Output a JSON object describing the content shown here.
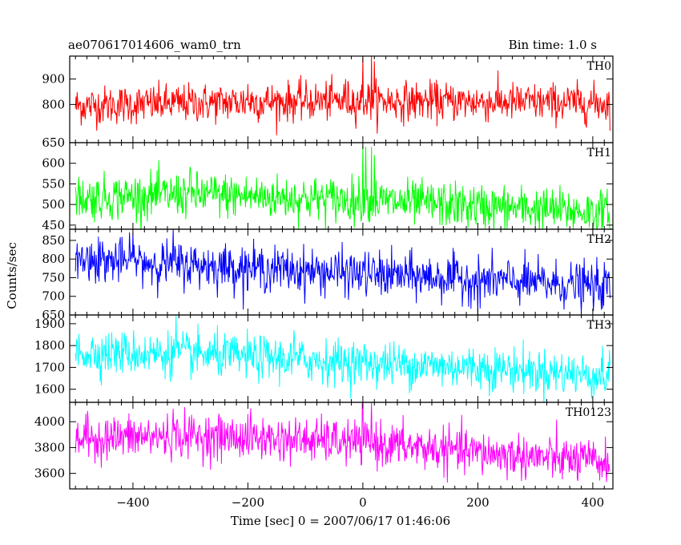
{
  "chart_data": {
    "type": "line",
    "title": "ae070617014606_wam0_trn",
    "bin_time_label": "Bin time: 1.0 s",
    "xlabel": "Time [sec] 0 = 2007/06/17 01:46:06",
    "ylabel": "Counts/sec",
    "x_range": [
      -510,
      435
    ],
    "data_x_range": [
      -500,
      430
    ],
    "x_ticks": [
      -400,
      -200,
      0,
      200,
      400
    ],
    "x_tick_labels": [
      "−400",
      "−200",
      "0",
      "200",
      "400"
    ],
    "grid": false,
    "panels": [
      {
        "name": "TH0",
        "color": "#ff0000",
        "ylim": [
          650,
          990
        ],
        "y_ticks": [
          900,
          800,
          650
        ],
        "y_tick_labels": [
          "900",
          "800",
          "650"
        ],
        "trend": [
          [
            -500,
            795
          ],
          [
            -200,
            810
          ],
          [
            0,
            815
          ],
          [
            200,
            810
          ],
          [
            430,
            805
          ]
        ],
        "noise_sd": 38,
        "spikes": [
          [
            -30,
            900
          ],
          [
            0,
            990
          ],
          [
            15,
            990
          ],
          [
            20,
            970
          ],
          [
            -200,
            880
          ]
        ]
      },
      {
        "name": "TH1",
        "color": "#00ff00",
        "ylim": [
          440,
          650
        ],
        "y_ticks": [
          600,
          550,
          500,
          450
        ],
        "y_tick_labels": [
          "600",
          "550",
          "500",
          "450"
        ],
        "trend": [
          [
            -500,
            515
          ],
          [
            -300,
            525
          ],
          [
            0,
            510
          ],
          [
            200,
            495
          ],
          [
            430,
            480
          ]
        ],
        "noise_sd": 27,
        "spikes": [
          [
            0,
            650
          ],
          [
            5,
            640
          ],
          [
            15,
            640
          ],
          [
            20,
            620
          ],
          [
            -300,
            590
          ]
        ]
      },
      {
        "name": "TH2",
        "color": "#0000ff",
        "ylim": [
          650,
          880
        ],
        "y_ticks": [
          850,
          800,
          750,
          700,
          650
        ],
        "y_tick_labels": [
          "850",
          "800",
          "750",
          "700",
          "650"
        ],
        "trend": [
          [
            -500,
            800
          ],
          [
            -300,
            785
          ],
          [
            0,
            760
          ],
          [
            200,
            745
          ],
          [
            430,
            725
          ]
        ],
        "noise_sd": 30,
        "spikes": [
          [
            -400,
            870
          ],
          [
            -330,
            880
          ],
          [
            -460,
            860
          ],
          [
            200,
            650
          ]
        ]
      },
      {
        "name": "TH3",
        "color": "#00ffff",
        "ylim": [
          1540,
          1940
        ],
        "y_ticks": [
          1900,
          1800,
          1700,
          1600
        ],
        "y_tick_labels": [
          "1900",
          "1800",
          "1700",
          "1600"
        ],
        "trend": [
          [
            -500,
            1770
          ],
          [
            -300,
            1760
          ],
          [
            0,
            1720
          ],
          [
            200,
            1700
          ],
          [
            430,
            1660
          ]
        ],
        "noise_sd": 50,
        "spikes": [
          [
            -325,
            1940
          ],
          [
            -120,
            1870
          ]
        ]
      },
      {
        "name": "TH0123",
        "color": "#ff00ff",
        "ylim": [
          3480,
          4150
        ],
        "y_ticks": [
          4000,
          3800,
          3600
        ],
        "y_tick_labels": [
          "4000",
          "3800",
          "3600"
        ],
        "trend": [
          [
            -500,
            3870
          ],
          [
            -300,
            3890
          ],
          [
            0,
            3840
          ],
          [
            200,
            3760
          ],
          [
            430,
            3680
          ]
        ],
        "noise_sd": 85,
        "spikes": [
          [
            0,
            4150
          ],
          [
            15,
            4150
          ],
          [
            -330,
            4100
          ],
          [
            -200,
            4060
          ]
        ]
      }
    ]
  }
}
